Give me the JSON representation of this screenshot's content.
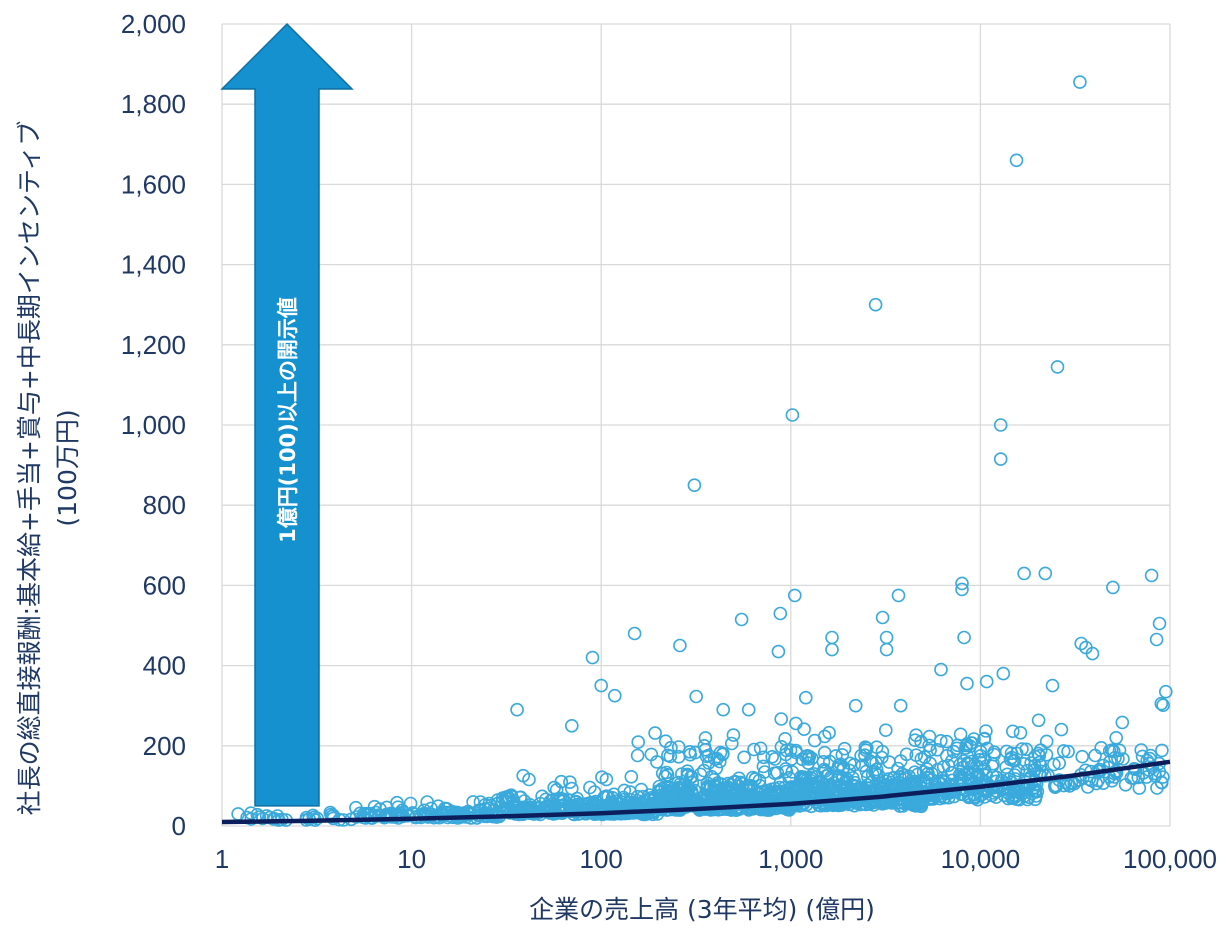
{
  "chart_data": {
    "type": "scatter",
    "title": "",
    "xlabel": "企業の売上高 (3年平均) (億円)",
    "ylabel_lines": [
      "社長の総直接報酬:基本給+手当+賞与+中長期インセンティブ",
      "(100万円)"
    ],
    "x_scale": "log",
    "xlim": [
      1,
      100000
    ],
    "ylim": [
      0,
      2000
    ],
    "x_ticks": [
      {
        "value": 1,
        "label": "1"
      },
      {
        "value": 10,
        "label": "10"
      },
      {
        "value": 100,
        "label": "100"
      },
      {
        "value": 1000,
        "label": "1,000"
      },
      {
        "value": 10000,
        "label": "10,000"
      },
      {
        "value": 100000,
        "label": "100,000"
      }
    ],
    "y_ticks": [
      {
        "value": 0,
        "label": "0"
      },
      {
        "value": 200,
        "label": "200"
      },
      {
        "value": 400,
        "label": "400"
      },
      {
        "value": 600,
        "label": "600"
      },
      {
        "value": 800,
        "label": "800"
      },
      {
        "value": 1000,
        "label": "1,000"
      },
      {
        "value": 1200,
        "label": "1,200"
      },
      {
        "value": 1400,
        "label": "1,400"
      },
      {
        "value": 1600,
        "label": "1,600"
      },
      {
        "value": 1800,
        "label": "1,800"
      },
      {
        "value": 2000,
        "label": "2,000"
      }
    ],
    "grid": true,
    "colors": {
      "points": "#3aa9dc",
      "trend": "#0c1f5c",
      "arrow": "#1591cf",
      "arrow_edge": "#0e6fa3",
      "grid": "#d9d9d9",
      "text": "#1f3864"
    },
    "arrow_annotation": {
      "text": "1億円(100)以上の開示値",
      "from_y": 100,
      "to_y": 2000
    },
    "trendline": {
      "x": [
        1,
        3,
        10,
        30,
        100,
        300,
        1000,
        3000,
        10000,
        30000,
        100000
      ],
      "y": [
        10,
        13,
        18,
        24,
        32,
        42,
        55,
        73,
        98,
        125,
        160
      ]
    },
    "points_outliers": [
      [
        36,
        290
      ],
      [
        70,
        250
      ],
      [
        90,
        420
      ],
      [
        100,
        350
      ],
      [
        118,
        325
      ],
      [
        150,
        480
      ],
      [
        260,
        450
      ],
      [
        310,
        850
      ],
      [
        440,
        290
      ],
      [
        550,
        515
      ],
      [
        600,
        290
      ],
      [
        860,
        435
      ],
      [
        880,
        530
      ],
      [
        1020,
        1025
      ],
      [
        1050,
        575
      ],
      [
        1200,
        320
      ],
      [
        1650,
        470
      ],
      [
        1650,
        440
      ],
      [
        2200,
        300
      ],
      [
        2800,
        1300
      ],
      [
        3050,
        520
      ],
      [
        3200,
        470
      ],
      [
        3200,
        440
      ],
      [
        3700,
        575
      ],
      [
        3800,
        300
      ],
      [
        6200,
        390
      ],
      [
        8000,
        605
      ],
      [
        8000,
        590
      ],
      [
        8200,
        470
      ],
      [
        8500,
        355
      ],
      [
        10800,
        360
      ],
      [
        12800,
        1000
      ],
      [
        12800,
        915
      ],
      [
        13200,
        380
      ],
      [
        15500,
        1660
      ],
      [
        17000,
        630
      ],
      [
        22000,
        630
      ],
      [
        24000,
        350
      ],
      [
        25500,
        1145
      ],
      [
        33500,
        1855
      ],
      [
        34000,
        455
      ],
      [
        36000,
        445
      ],
      [
        39000,
        430
      ],
      [
        50000,
        595
      ],
      [
        52000,
        220
      ],
      [
        80000,
        625
      ],
      [
        85000,
        465
      ],
      [
        88000,
        505
      ],
      [
        90000,
        305
      ],
      [
        95000,
        335
      ]
    ],
    "points_cloud": [
      {
        "x_min": 1.2,
        "x_max": 5,
        "y_mean": 18,
        "spread": 12,
        "n": 30
      },
      {
        "x_min": 5,
        "x_max": 30,
        "y_mean": 26,
        "spread": 18,
        "n": 130
      },
      {
        "x_min": 30,
        "x_max": 200,
        "y_mean": 40,
        "spread": 32,
        "n": 300
      },
      {
        "x_min": 200,
        "x_max": 1000,
        "y_mean": 55,
        "spread": 45,
        "n": 420
      },
      {
        "x_min": 1000,
        "x_max": 5000,
        "y_mean": 70,
        "spread": 60,
        "n": 400
      },
      {
        "x_min": 5000,
        "x_max": 20000,
        "y_mean": 90,
        "spread": 70,
        "n": 220
      },
      {
        "x_min": 20000,
        "x_max": 95000,
        "y_mean": 120,
        "spread": 75,
        "n": 90
      },
      {
        "x_min": 150,
        "x_max": 15000,
        "y_mean": 180,
        "spread": 60,
        "n": 80
      }
    ]
  }
}
